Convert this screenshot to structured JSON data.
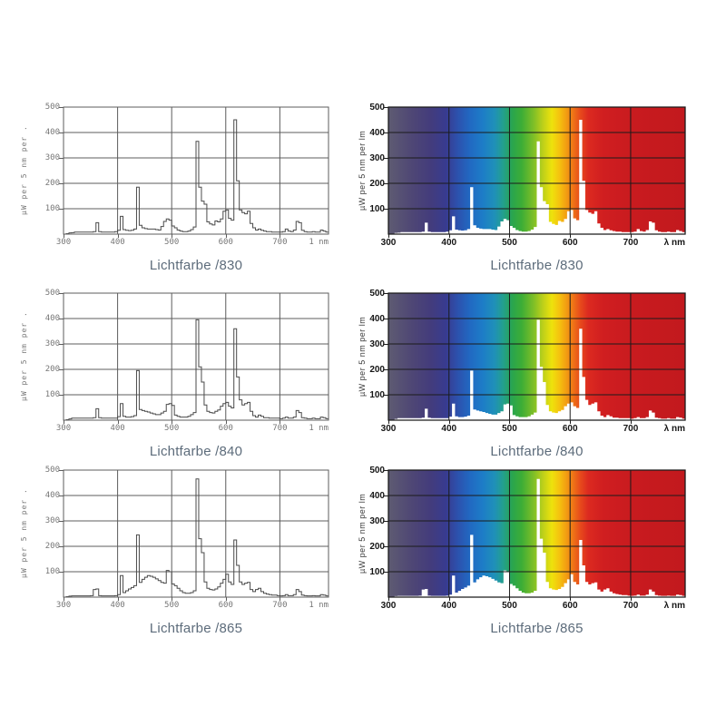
{
  "styles": {
    "title_color": "#5d6c7b",
    "left_axis_color": "#5c5c5c",
    "left_curve_color": "#4a4a4a",
    "left_label_color": "#767676",
    "right_axis_color": "#1b1b1b",
    "right_label_color": "#151515",
    "spectrum_fill": "#ffffff"
  },
  "spectrum_gradient": [
    [
      300,
      "#5e5b72"
    ],
    [
      340,
      "#4e4675"
    ],
    [
      370,
      "#433c7c"
    ],
    [
      395,
      "#383b90"
    ],
    [
      415,
      "#2c52ae"
    ],
    [
      435,
      "#2169c2"
    ],
    [
      455,
      "#1d7cc7"
    ],
    [
      475,
      "#1f90b9"
    ],
    [
      490,
      "#23a08b"
    ],
    [
      505,
      "#2aa54d"
    ],
    [
      520,
      "#3dad36"
    ],
    [
      540,
      "#7fbf27"
    ],
    [
      555,
      "#bcd01a"
    ],
    [
      570,
      "#eee20c"
    ],
    [
      583,
      "#f5c00f"
    ],
    [
      597,
      "#f29313"
    ],
    [
      607,
      "#ee6d17"
    ],
    [
      617,
      "#e74a1c"
    ],
    [
      630,
      "#dc2a20"
    ],
    [
      655,
      "#d01e20"
    ],
    [
      700,
      "#c91b1f"
    ],
    [
      790,
      "#c2191e"
    ]
  ],
  "chart_data": [
    {
      "type": "area",
      "variant": "line",
      "title": "Lichtfarbe /830",
      "ylabel": "µW per 5 nm per .",
      "x_unit_label": "1 nm",
      "x_start": 300,
      "x_step": 5,
      "xlim": [
        300,
        790
      ],
      "ylim": [
        0,
        500
      ],
      "x_ticks": [
        300,
        400,
        500,
        600,
        700
      ],
      "y_ticks": [
        100,
        200,
        300,
        400,
        500
      ],
      "grid": true,
      "values": [
        0,
        2,
        5,
        6,
        8,
        8,
        8,
        8,
        8,
        8,
        8,
        10,
        45,
        10,
        8,
        8,
        8,
        8,
        8,
        10,
        15,
        70,
        18,
        15,
        14,
        15,
        20,
        185,
        35,
        25,
        22,
        20,
        20,
        20,
        18,
        16,
        30,
        50,
        60,
        55,
        32,
        25,
        16,
        12,
        10,
        10,
        12,
        18,
        28,
        365,
        185,
        130,
        118,
        48,
        40,
        36,
        52,
        48,
        60,
        90,
        95,
        62,
        55,
        450,
        210,
        95,
        85,
        80,
        90,
        42,
        25,
        16,
        20,
        15,
        12,
        10,
        10,
        8,
        8,
        8,
        8,
        10,
        20,
        12,
        10,
        16,
        50,
        45,
        15,
        10,
        8,
        8,
        10,
        8,
        8,
        16,
        12,
        8
      ]
    },
    {
      "type": "area",
      "variant": "filled-spectrum",
      "title": "Lichtfarbe /830",
      "ylabel": "µW per 5 nm per lm",
      "x_unit_label": "λ nm",
      "x_start": 300,
      "x_step": 5,
      "xlim": [
        300,
        790
      ],
      "ylim": [
        0,
        500
      ],
      "x_ticks": [
        300,
        400,
        500,
        600,
        700
      ],
      "y_ticks": [
        100,
        200,
        300,
        400,
        500
      ],
      "grid": true,
      "values": [
        0,
        2,
        5,
        6,
        8,
        8,
        8,
        8,
        8,
        8,
        8,
        10,
        45,
        10,
        8,
        8,
        8,
        8,
        8,
        10,
        15,
        70,
        18,
        15,
        14,
        15,
        20,
        185,
        35,
        25,
        22,
        20,
        20,
        20,
        18,
        16,
        30,
        50,
        60,
        55,
        32,
        25,
        16,
        12,
        10,
        10,
        12,
        18,
        28,
        365,
        185,
        130,
        118,
        48,
        40,
        36,
        52,
        48,
        60,
        90,
        95,
        62,
        55,
        450,
        210,
        95,
        85,
        80,
        90,
        42,
        25,
        16,
        20,
        15,
        12,
        10,
        10,
        8,
        8,
        8,
        8,
        10,
        20,
        12,
        10,
        16,
        50,
        45,
        15,
        10,
        8,
        8,
        10,
        8,
        8,
        16,
        12,
        8
      ]
    },
    {
      "type": "area",
      "variant": "line",
      "title": "Lichtfarbe /840",
      "ylabel": "µW per 5 nm per .",
      "x_unit_label": "1 nm",
      "x_start": 300,
      "x_step": 5,
      "xlim": [
        300,
        790
      ],
      "ylim": [
        0,
        500
      ],
      "x_ticks": [
        300,
        400,
        500,
        600,
        700
      ],
      "y_ticks": [
        100,
        200,
        300,
        400,
        500
      ],
      "grid": true,
      "values": [
        0,
        2,
        5,
        8,
        8,
        8,
        8,
        8,
        8,
        8,
        8,
        10,
        45,
        10,
        8,
        8,
        8,
        8,
        8,
        8,
        14,
        65,
        15,
        12,
        12,
        14,
        18,
        195,
        42,
        38,
        35,
        32,
        28,
        25,
        22,
        22,
        28,
        35,
        62,
        65,
        58,
        20,
        15,
        12,
        12,
        12,
        15,
        22,
        30,
        395,
        210,
        150,
        60,
        35,
        30,
        28,
        35,
        40,
        55,
        65,
        70,
        55,
        48,
        360,
        170,
        80,
        60,
        65,
        70,
        35,
        18,
        12,
        20,
        15,
        10,
        10,
        8,
        8,
        8,
        8,
        6,
        8,
        12,
        8,
        8,
        12,
        38,
        30,
        10,
        8,
        6,
        6,
        8,
        6,
        6,
        12,
        10,
        6
      ]
    },
    {
      "type": "area",
      "variant": "filled-spectrum",
      "title": "Lichtfarbe /840",
      "ylabel": "µW per 5 nm per lm",
      "x_unit_label": "λ nm",
      "x_start": 300,
      "x_step": 5,
      "xlim": [
        300,
        790
      ],
      "ylim": [
        0,
        500
      ],
      "x_ticks": [
        300,
        400,
        500,
        600,
        700
      ],
      "y_ticks": [
        100,
        200,
        300,
        400,
        500
      ],
      "grid": true,
      "values": [
        0,
        2,
        5,
        8,
        8,
        8,
        8,
        8,
        8,
        8,
        8,
        10,
        45,
        10,
        8,
        8,
        8,
        8,
        8,
        8,
        14,
        65,
        15,
        12,
        12,
        14,
        18,
        195,
        42,
        38,
        35,
        32,
        28,
        25,
        22,
        22,
        28,
        35,
        62,
        65,
        58,
        20,
        15,
        12,
        12,
        12,
        15,
        22,
        30,
        395,
        210,
        150,
        60,
        35,
        30,
        28,
        35,
        40,
        55,
        65,
        70,
        55,
        48,
        360,
        170,
        80,
        60,
        65,
        70,
        35,
        18,
        12,
        20,
        15,
        10,
        10,
        8,
        8,
        8,
        8,
        6,
        8,
        12,
        8,
        8,
        12,
        38,
        30,
        10,
        8,
        6,
        6,
        8,
        6,
        6,
        12,
        10,
        6
      ]
    },
    {
      "type": "area",
      "variant": "line",
      "title": "Lichtfarbe /865",
      "ylabel": "µW per 5 nm per .",
      "x_unit_label": "1 nm",
      "x_start": 300,
      "x_step": 5,
      "xlim": [
        300,
        790
      ],
      "ylim": [
        0,
        500
      ],
      "x_ticks": [
        300,
        400,
        500,
        600,
        700
      ],
      "y_ticks": [
        100,
        200,
        300,
        400,
        500
      ],
      "grid": true,
      "values": [
        0,
        2,
        4,
        5,
        5,
        5,
        5,
        5,
        5,
        5,
        6,
        30,
        32,
        6,
        5,
        5,
        5,
        5,
        5,
        6,
        10,
        85,
        18,
        25,
        32,
        38,
        45,
        245,
        58,
        70,
        78,
        85,
        82,
        78,
        72,
        65,
        58,
        55,
        105,
        100,
        52,
        45,
        35,
        25,
        18,
        15,
        15,
        18,
        25,
        465,
        230,
        175,
        60,
        35,
        30,
        28,
        32,
        40,
        55,
        70,
        90,
        60,
        50,
        225,
        125,
        60,
        50,
        55,
        58,
        30,
        22,
        30,
        35,
        22,
        15,
        12,
        10,
        8,
        8,
        6,
        5,
        6,
        10,
        6,
        6,
        10,
        30,
        22,
        8,
        6,
        5,
        5,
        6,
        5,
        5,
        10,
        8,
        5
      ]
    },
    {
      "type": "area",
      "variant": "filled-spectrum",
      "title": "Lichtfarbe /865",
      "ylabel": "µW per 5 nm per lm",
      "x_unit_label": "λ nm",
      "x_start": 300,
      "x_step": 5,
      "xlim": [
        300,
        790
      ],
      "ylim": [
        0,
        500
      ],
      "x_ticks": [
        300,
        400,
        500,
        600,
        700
      ],
      "y_ticks": [
        100,
        200,
        300,
        400,
        500
      ],
      "grid": true,
      "values": [
        0,
        2,
        4,
        5,
        5,
        5,
        5,
        5,
        5,
        5,
        6,
        30,
        32,
        6,
        5,
        5,
        5,
        5,
        5,
        6,
        10,
        85,
        18,
        25,
        32,
        38,
        45,
        245,
        58,
        70,
        78,
        85,
        82,
        78,
        72,
        65,
        58,
        55,
        105,
        100,
        52,
        45,
        35,
        25,
        18,
        15,
        15,
        18,
        25,
        465,
        230,
        175,
        60,
        35,
        30,
        28,
        32,
        40,
        55,
        70,
        90,
        60,
        50,
        225,
        125,
        60,
        50,
        55,
        58,
        30,
        22,
        30,
        35,
        22,
        15,
        12,
        10,
        8,
        8,
        6,
        5,
        6,
        10,
        6,
        6,
        10,
        30,
        22,
        8,
        6,
        5,
        5,
        6,
        5,
        5,
        10,
        8,
        5
      ]
    }
  ]
}
